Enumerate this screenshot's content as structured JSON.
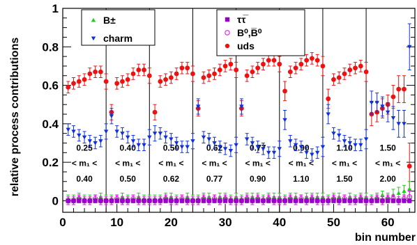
{
  "chart_data": {
    "type": "scatter",
    "title": "",
    "xlabel": "bin number",
    "ylabel": "relative process contributions",
    "xlim": [
      0,
      65
    ],
    "ylim": [
      -0.06,
      1.0
    ],
    "x_ticks": [
      0,
      10,
      20,
      30,
      40,
      50,
      60
    ],
    "y_ticks": [
      0,
      0.2,
      0.4,
      0.6,
      0.8,
      1
    ],
    "y_tick_labels": [
      "0",
      "0.2",
      "0.4",
      "0.6",
      "0.8",
      "1"
    ],
    "x_tick_labels": [
      "0",
      "10",
      "20",
      "30",
      "40",
      "50",
      "60"
    ],
    "bin_boundaries": [
      8,
      16,
      24,
      32,
      40,
      48,
      56
    ],
    "bin_labels": [
      {
        "x_center": 4,
        "low": "0.25",
        "mid": "< m₁ <",
        "high": "0.40"
      },
      {
        "x_center": 12,
        "low": "0.40",
        "mid": "< m₁ <",
        "high": "0.50"
      },
      {
        "x_center": 20,
        "low": "0.50",
        "mid": "< m₁ <",
        "high": "0.62"
      },
      {
        "x_center": 28,
        "low": "0.62",
        "mid": "< m₁ <",
        "high": "0.77"
      },
      {
        "x_center": 36,
        "low": "0.77",
        "mid": "< m₁ <",
        "high": "0.90"
      },
      {
        "x_center": 44,
        "low": "0.90",
        "mid": "< m₁ <",
        "high": "1.10"
      },
      {
        "x_center": 52,
        "low": "1.10",
        "mid": "< m₁ <",
        "high": "1.50"
      },
      {
        "x_center": 60,
        "low": "1.50",
        "mid": "< m₁ <",
        "high": "2.00"
      }
    ],
    "legend": [
      {
        "label": "B±",
        "marker": "triangle-up",
        "color": "#22cc22"
      },
      {
        "label": "charm",
        "marker": "triangle-down",
        "color": "#1030e0"
      },
      {
        "label": "ττ̅",
        "marker": "square",
        "color": "#9900cc"
      },
      {
        "label": "B⁰,B̅⁰",
        "marker": "open-circle",
        "color": "#ee00ee"
      },
      {
        "label": "uds",
        "marker": "circle",
        "color": "#ee1111"
      }
    ],
    "series": [
      {
        "name": "uds",
        "color": "#ee1111",
        "marker": "circle",
        "x": [
          1,
          2,
          3,
          4,
          5,
          6,
          7,
          8,
          9,
          10,
          11,
          12,
          13,
          14,
          15,
          16,
          17,
          18,
          19,
          20,
          21,
          22,
          23,
          24,
          25,
          26,
          27,
          28,
          29,
          30,
          31,
          32,
          33,
          34,
          35,
          36,
          37,
          38,
          39,
          40,
          41,
          42,
          43,
          44,
          45,
          46,
          47,
          48,
          49,
          50,
          51,
          52,
          53,
          54,
          55,
          56,
          57,
          58,
          59,
          60,
          61,
          62,
          63,
          64
        ],
        "y": [
          0.59,
          0.61,
          0.62,
          0.63,
          0.66,
          0.67,
          0.67,
          0.62,
          0.46,
          0.61,
          0.62,
          0.63,
          0.66,
          0.68,
          0.68,
          0.65,
          0.46,
          0.62,
          0.63,
          0.64,
          0.66,
          0.69,
          0.69,
          0.66,
          0.48,
          0.64,
          0.65,
          0.66,
          0.68,
          0.7,
          0.71,
          0.68,
          0.48,
          0.65,
          0.67,
          0.69,
          0.71,
          0.73,
          0.73,
          0.71,
          0.57,
          0.67,
          0.69,
          0.71,
          0.73,
          0.74,
          0.73,
          0.7,
          0.53,
          0.63,
          0.64,
          0.66,
          0.68,
          0.69,
          0.7,
          0.67,
          0.45,
          0.46,
          0.48,
          0.5,
          0.54,
          0.58,
          0.58,
          0.18
        ],
        "err": [
          0.03,
          0.03,
          0.03,
          0.03,
          0.03,
          0.03,
          0.03,
          0.04,
          0.04,
          0.03,
          0.03,
          0.03,
          0.03,
          0.03,
          0.03,
          0.04,
          0.04,
          0.03,
          0.03,
          0.03,
          0.03,
          0.03,
          0.03,
          0.04,
          0.04,
          0.03,
          0.03,
          0.03,
          0.03,
          0.03,
          0.03,
          0.04,
          0.04,
          0.03,
          0.03,
          0.03,
          0.03,
          0.03,
          0.03,
          0.04,
          0.05,
          0.03,
          0.03,
          0.03,
          0.03,
          0.03,
          0.03,
          0.05,
          0.05,
          0.03,
          0.03,
          0.03,
          0.03,
          0.03,
          0.03,
          0.05,
          0.06,
          0.05,
          0.05,
          0.05,
          0.06,
          0.07,
          0.07,
          0.12
        ]
      },
      {
        "name": "charm",
        "color": "#1030e0",
        "marker": "triangle-down",
        "x": [
          1,
          2,
          3,
          4,
          5,
          6,
          7,
          8,
          9,
          10,
          11,
          12,
          13,
          14,
          15,
          16,
          17,
          18,
          19,
          20,
          21,
          22,
          23,
          24,
          25,
          26,
          27,
          28,
          29,
          30,
          31,
          32,
          33,
          34,
          35,
          36,
          37,
          38,
          39,
          40,
          41,
          42,
          43,
          44,
          45,
          46,
          47,
          48,
          49,
          50,
          51,
          52,
          53,
          54,
          55,
          56,
          57,
          58,
          59,
          60,
          61,
          62,
          63,
          64
        ],
        "y": [
          0.37,
          0.36,
          0.34,
          0.33,
          0.31,
          0.3,
          0.31,
          0.36,
          0.44,
          0.36,
          0.35,
          0.33,
          0.31,
          0.29,
          0.29,
          0.33,
          0.35,
          0.35,
          0.33,
          0.32,
          0.3,
          0.28,
          0.28,
          0.31,
          0.49,
          0.33,
          0.32,
          0.3,
          0.28,
          0.27,
          0.26,
          0.29,
          0.49,
          0.32,
          0.3,
          0.28,
          0.27,
          0.25,
          0.25,
          0.27,
          0.42,
          0.31,
          0.29,
          0.28,
          0.25,
          0.24,
          0.25,
          0.28,
          0.45,
          0.35,
          0.34,
          0.31,
          0.3,
          0.29,
          0.29,
          0.32,
          0.51,
          0.51,
          0.49,
          0.46,
          0.43,
          0.4,
          0.4,
          0.8
        ],
        "err": [
          0.03,
          0.03,
          0.03,
          0.03,
          0.03,
          0.03,
          0.03,
          0.04,
          0.04,
          0.03,
          0.03,
          0.03,
          0.03,
          0.03,
          0.03,
          0.04,
          0.04,
          0.03,
          0.03,
          0.03,
          0.03,
          0.03,
          0.03,
          0.04,
          0.04,
          0.03,
          0.03,
          0.03,
          0.03,
          0.03,
          0.03,
          0.04,
          0.04,
          0.03,
          0.03,
          0.03,
          0.03,
          0.03,
          0.03,
          0.04,
          0.05,
          0.03,
          0.03,
          0.03,
          0.03,
          0.03,
          0.03,
          0.05,
          0.05,
          0.03,
          0.03,
          0.03,
          0.03,
          0.03,
          0.03,
          0.05,
          0.06,
          0.05,
          0.05,
          0.05,
          0.06,
          0.07,
          0.07,
          0.12
        ]
      },
      {
        "name": "B±",
        "color": "#22cc22",
        "marker": "triangle-up",
        "x": [
          1,
          2,
          3,
          4,
          5,
          6,
          7,
          8,
          9,
          10,
          11,
          12,
          13,
          14,
          15,
          16,
          17,
          18,
          19,
          20,
          21,
          22,
          23,
          24,
          25,
          26,
          27,
          28,
          29,
          30,
          31,
          32,
          33,
          34,
          35,
          36,
          37,
          38,
          39,
          40,
          41,
          42,
          43,
          44,
          45,
          46,
          47,
          48,
          49,
          50,
          51,
          52,
          53,
          54,
          55,
          56,
          57,
          58,
          59,
          60,
          61,
          62,
          63,
          64
        ],
        "y": [
          0.01,
          0.01,
          0.02,
          0.01,
          0.01,
          0.01,
          0.02,
          0.01,
          0.01,
          0.01,
          0.02,
          0.01,
          0.01,
          0.02,
          0.01,
          0.01,
          0.01,
          0.01,
          0.02,
          0.02,
          0.01,
          0.01,
          0.02,
          0.01,
          0.01,
          0.02,
          0.02,
          0.01,
          0.02,
          0.02,
          0.01,
          0.02,
          0.01,
          0.02,
          0.02,
          0.02,
          0.01,
          0.02,
          0.02,
          0.02,
          0.01,
          0.02,
          0.02,
          0.01,
          0.02,
          0.02,
          0.02,
          0.02,
          0.01,
          0.02,
          0.02,
          0.01,
          0.02,
          0.01,
          0.02,
          0.02,
          0.01,
          0.02,
          0.03,
          0.02,
          0.03,
          0.04,
          0.05,
          0.06
        ],
        "err": [
          0.02,
          0.02,
          0.02,
          0.02,
          0.02,
          0.02,
          0.02,
          0.02,
          0.02,
          0.02,
          0.02,
          0.02,
          0.02,
          0.02,
          0.02,
          0.02,
          0.02,
          0.02,
          0.02,
          0.02,
          0.02,
          0.02,
          0.02,
          0.02,
          0.02,
          0.02,
          0.02,
          0.02,
          0.02,
          0.02,
          0.02,
          0.02,
          0.02,
          0.02,
          0.02,
          0.02,
          0.02,
          0.02,
          0.02,
          0.02,
          0.02,
          0.02,
          0.02,
          0.02,
          0.02,
          0.02,
          0.02,
          0.02,
          0.02,
          0.02,
          0.02,
          0.02,
          0.02,
          0.02,
          0.02,
          0.02,
          0.02,
          0.02,
          0.02,
          0.02,
          0.03,
          0.03,
          0.03,
          0.04
        ]
      },
      {
        "name": "B⁰,B̅⁰",
        "color": "#ee00ee",
        "marker": "open-circle",
        "x": [
          1,
          2,
          3,
          4,
          5,
          6,
          7,
          8,
          9,
          10,
          11,
          12,
          13,
          14,
          15,
          16,
          17,
          18,
          19,
          20,
          21,
          22,
          23,
          24,
          25,
          26,
          27,
          28,
          29,
          30,
          31,
          32,
          33,
          34,
          35,
          36,
          37,
          38,
          39,
          40,
          41,
          42,
          43,
          44,
          45,
          46,
          47,
          48,
          49,
          50,
          51,
          52,
          53,
          54,
          55,
          56,
          57,
          58,
          59,
          60,
          61,
          62,
          63,
          64
        ],
        "y": [
          0.0,
          0.0,
          0.01,
          0.0,
          0.0,
          0.01,
          0.0,
          0.0,
          0.0,
          0.01,
          0.0,
          0.0,
          0.01,
          0.0,
          0.0,
          0.0,
          0.0,
          0.0,
          0.01,
          0.0,
          0.0,
          0.01,
          0.0,
          0.0,
          0.0,
          0.01,
          0.0,
          0.01,
          0.0,
          0.01,
          0.0,
          0.0,
          0.0,
          0.01,
          0.0,
          0.01,
          0.0,
          0.01,
          0.0,
          0.0,
          0.0,
          0.01,
          0.0,
          0.01,
          0.0,
          0.01,
          0.0,
          0.0,
          0.0,
          0.01,
          0.0,
          0.01,
          0.0,
          0.0,
          0.01,
          0.0,
          0.0,
          0.01,
          0.0,
          0.01,
          0.01,
          0.0,
          0.01,
          0.02
        ],
        "err": [
          0.02,
          0.02,
          0.02,
          0.02,
          0.02,
          0.02,
          0.02,
          0.02,
          0.02,
          0.02,
          0.02,
          0.02,
          0.02,
          0.02,
          0.02,
          0.02,
          0.02,
          0.02,
          0.02,
          0.02,
          0.02,
          0.02,
          0.02,
          0.02,
          0.02,
          0.02,
          0.02,
          0.02,
          0.02,
          0.02,
          0.02,
          0.02,
          0.02,
          0.02,
          0.02,
          0.02,
          0.02,
          0.02,
          0.02,
          0.02,
          0.02,
          0.02,
          0.02,
          0.02,
          0.02,
          0.02,
          0.02,
          0.02,
          0.02,
          0.02,
          0.02,
          0.02,
          0.02,
          0.02,
          0.02,
          0.02,
          0.02,
          0.02,
          0.02,
          0.02,
          0.02,
          0.02,
          0.02,
          0.03
        ]
      },
      {
        "name": "ττ̅",
        "color": "#9900cc",
        "marker": "square",
        "x": [
          1,
          2,
          3,
          4,
          5,
          6,
          7,
          8,
          9,
          10,
          11,
          12,
          13,
          14,
          15,
          16,
          17,
          18,
          19,
          20,
          21,
          22,
          23,
          24,
          25,
          26,
          27,
          28,
          29,
          30,
          31,
          32,
          33,
          34,
          35,
          36,
          37,
          38,
          39,
          40,
          41,
          42,
          43,
          44,
          45,
          46,
          47,
          48,
          49,
          50,
          51,
          52,
          53,
          54,
          55,
          56,
          57,
          58,
          59,
          60,
          61,
          62,
          63,
          64
        ],
        "y": [
          0.0,
          0.0,
          0.0,
          0.0,
          0.0,
          0.0,
          0.0,
          0.0,
          0.0,
          0.0,
          0.0,
          0.0,
          0.0,
          0.0,
          0.0,
          0.0,
          0.0,
          0.0,
          0.0,
          0.0,
          0.0,
          0.0,
          0.0,
          0.0,
          0.0,
          0.0,
          0.0,
          0.0,
          0.0,
          0.0,
          0.0,
          0.0,
          0.0,
          0.0,
          0.0,
          0.0,
          0.0,
          0.0,
          0.0,
          0.0,
          0.0,
          0.0,
          0.0,
          0.0,
          0.0,
          0.0,
          0.0,
          0.0,
          0.0,
          0.0,
          0.0,
          0.0,
          0.0,
          0.0,
          0.0,
          0.0,
          0.0,
          0.0,
          0.0,
          0.0,
          0.0,
          0.0,
          0.0,
          0.0
        ],
        "err": [
          0.01,
          0.01,
          0.01,
          0.01,
          0.01,
          0.01,
          0.01,
          0.01,
          0.01,
          0.01,
          0.01,
          0.01,
          0.01,
          0.01,
          0.01,
          0.01,
          0.01,
          0.01,
          0.01,
          0.01,
          0.01,
          0.01,
          0.01,
          0.01,
          0.01,
          0.01,
          0.01,
          0.01,
          0.01,
          0.01,
          0.01,
          0.01,
          0.01,
          0.01,
          0.01,
          0.01,
          0.01,
          0.01,
          0.01,
          0.01,
          0.01,
          0.01,
          0.01,
          0.01,
          0.01,
          0.01,
          0.01,
          0.01,
          0.01,
          0.01,
          0.01,
          0.01,
          0.01,
          0.01,
          0.01,
          0.01,
          0.01,
          0.01,
          0.01,
          0.01,
          0.01,
          0.01,
          0.01,
          0.01
        ]
      }
    ]
  }
}
